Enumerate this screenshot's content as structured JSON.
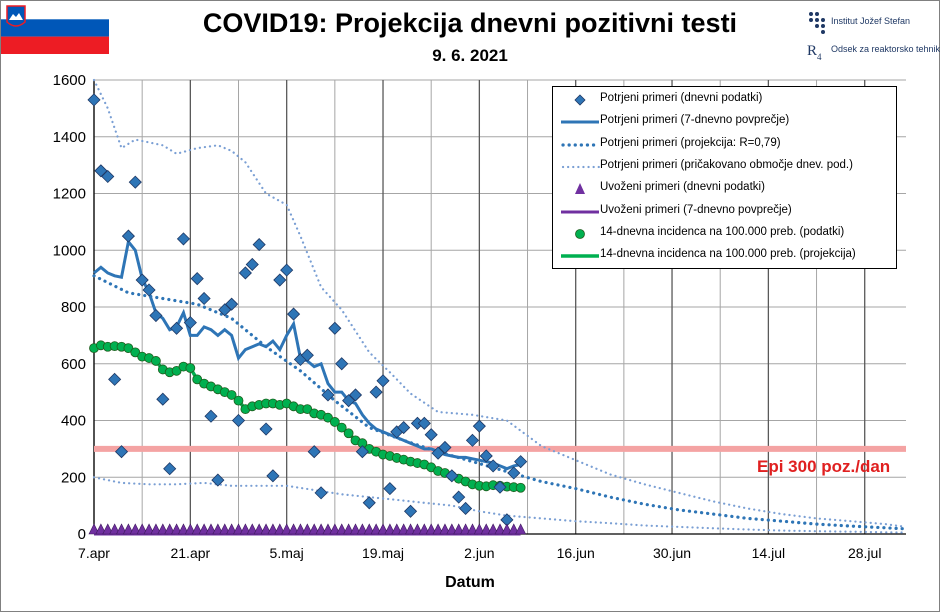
{
  "title": "COVID19: Projekcija dnevni pozitivni testi",
  "subtitle": "9. 6. 2021",
  "logo": {
    "institute": "Institut Jožef Stefan",
    "department": "Odsek za reaktorsko tehniko"
  },
  "epi_label": "Epi 300 poz./dan",
  "colors": {
    "daily": "#2e75b6",
    "daily_marker_fill": "#2e75b6",
    "projection": "#2e75b6",
    "range": "#7a9fd4",
    "imported": "#7030a0",
    "incidence": "#00b050",
    "epi_line": "#f4a3a3"
  },
  "chart_data": {
    "type": "line",
    "xlabel": "Datum",
    "ylabel": "",
    "x_tick_labels": [
      "7.apr",
      "21.apr",
      "5.maj",
      "19.maj",
      "2.jun",
      "16.jun",
      "30.jun",
      "14.jul",
      "28.jul"
    ],
    "x_day_range": [
      0,
      118
    ],
    "ylim": [
      0,
      1600
    ],
    "y_ticks": [
      0,
      200,
      400,
      600,
      800,
      1000,
      1200,
      1400,
      1600
    ],
    "grid": true,
    "legend_position": "top-right",
    "epi_threshold": 300,
    "series": [
      {
        "name": "Potrjeni primeri (dnevni podatki)",
        "style": "diamond",
        "x": [
          0,
          1,
          2,
          3,
          4,
          5,
          6,
          7,
          8,
          9,
          10,
          11,
          12,
          13,
          14,
          15,
          16,
          17,
          18,
          19,
          20,
          21,
          22,
          23,
          24,
          25,
          26,
          27,
          28,
          29,
          30,
          31,
          32,
          33,
          34,
          35,
          36,
          37,
          38,
          39,
          40,
          41,
          42,
          43,
          44,
          45,
          46,
          47,
          48,
          49,
          50,
          51,
          52,
          53,
          54,
          55,
          56,
          57,
          58,
          59,
          60,
          61,
          62
        ],
        "values": [
          1530,
          1280,
          1260,
          545,
          290,
          1050,
          1240,
          895,
          860,
          770,
          475,
          230,
          725,
          1040,
          745,
          900,
          830,
          415,
          190,
          790,
          810,
          400,
          920,
          950,
          1020,
          370,
          205,
          895,
          930,
          775,
          615,
          630,
          290,
          145,
          490,
          725,
          600,
          470,
          490,
          290,
          110,
          500,
          540,
          160,
          360,
          375,
          80,
          390,
          390,
          350,
          285,
          305,
          205,
          130,
          90,
          330,
          380,
          275,
          240,
          165,
          50,
          215,
          255
        ]
      },
      {
        "name": "Potrjeni primeri (7-dnevno povprečje)",
        "style": "line",
        "x": [
          0,
          1,
          2,
          3,
          4,
          5,
          6,
          7,
          8,
          9,
          10,
          11,
          12,
          13,
          14,
          15,
          16,
          17,
          18,
          19,
          20,
          21,
          22,
          23,
          24,
          25,
          26,
          27,
          28,
          29,
          30,
          31,
          32,
          33,
          34,
          35,
          36,
          37,
          38,
          39,
          40,
          41,
          42,
          43,
          44,
          45,
          46,
          47,
          48,
          49,
          50,
          51,
          52,
          53,
          54,
          55,
          56,
          57,
          58,
          59,
          60,
          61,
          62
        ],
        "values": [
          920,
          940,
          920,
          910,
          905,
          1030,
          1000,
          900,
          850,
          780,
          760,
          720,
          730,
          780,
          700,
          700,
          730,
          720,
          700,
          720,
          700,
          620,
          650,
          660,
          670,
          660,
          680,
          650,
          700,
          740,
          620,
          610,
          590,
          600,
          530,
          500,
          500,
          470,
          460,
          420,
          390,
          370,
          360,
          350,
          340,
          330,
          320,
          310,
          300,
          300,
          290,
          280,
          275,
          270,
          270,
          265,
          260,
          255,
          250,
          240,
          230,
          240,
          245
        ]
      },
      {
        "name": "Potrjeni primeri (projekcija: R=0,79)",
        "style": "dotted",
        "x": [
          0,
          5,
          10,
          15,
          20,
          25,
          30,
          35,
          40,
          45,
          50,
          55,
          60,
          65,
          70,
          75,
          80,
          85,
          90,
          95,
          100,
          105,
          110,
          115,
          118
        ],
        "values": [
          910,
          850,
          830,
          810,
          760,
          660,
          575,
          470,
          375,
          330,
          290,
          255,
          220,
          185,
          160,
          130,
          105,
          85,
          70,
          55,
          45,
          35,
          28,
          22,
          18
        ]
      },
      {
        "name": "Potrjeni primeri (pričakovano območje dnev. pod.)",
        "style": "dotted-thin",
        "x": [
          0,
          2,
          4,
          6,
          8,
          10,
          12,
          15,
          18,
          20,
          22,
          25,
          28,
          30,
          33,
          36,
          40,
          43,
          46,
          50,
          55,
          60,
          65,
          70,
          75,
          80,
          85,
          90,
          95,
          100,
          105,
          110,
          115,
          118
        ],
        "values": [
          1600,
          1500,
          1360,
          1390,
          1380,
          1370,
          1340,
          1360,
          1370,
          1350,
          1310,
          1200,
          1160,
          1050,
          870,
          790,
          640,
          570,
          495,
          430,
          420,
          400,
          310,
          260,
          210,
          175,
          145,
          115,
          90,
          70,
          55,
          45,
          35,
          25
        ]
      },
      {
        "name": "Potrjeni primeri (pričakovano območje dnev. pod.) spodaj",
        "style": "dotted-thin",
        "x": [
          0,
          4,
          8,
          12,
          16,
          20,
          24,
          28,
          32,
          36,
          40,
          44,
          48,
          52,
          56,
          60,
          65,
          70,
          75,
          80,
          85,
          90,
          95,
          100,
          105,
          110,
          115,
          118
        ],
        "values": [
          200,
          180,
          175,
          175,
          180,
          170,
          170,
          170,
          155,
          140,
          130,
          120,
          110,
          100,
          80,
          65,
          55,
          45,
          38,
          30,
          25,
          20,
          16,
          12,
          10,
          8,
          6,
          5
        ]
      },
      {
        "name": "Uvoženi primeri (dnevni podatki)",
        "style": "triangle",
        "x": [
          0,
          1,
          2,
          3,
          4,
          5,
          6,
          7,
          8,
          9,
          10,
          11,
          12,
          13,
          14,
          15,
          16,
          17,
          18,
          19,
          20,
          21,
          22,
          23,
          24,
          25,
          26,
          27,
          28,
          29,
          30,
          31,
          32,
          33,
          34,
          35,
          36,
          37,
          38,
          39,
          40,
          41,
          42,
          43,
          44,
          45,
          46,
          47,
          48,
          49,
          50,
          51,
          52,
          53,
          54,
          55,
          56,
          57,
          58,
          59,
          60,
          61,
          62
        ],
        "values": [
          0,
          0,
          0,
          0,
          0,
          0,
          0,
          0,
          0,
          0,
          0,
          0,
          0,
          0,
          0,
          0,
          0,
          0,
          0,
          0,
          0,
          0,
          0,
          0,
          0,
          0,
          0,
          0,
          0,
          0,
          0,
          0,
          0,
          0,
          0,
          0,
          0,
          0,
          0,
          0,
          0,
          0,
          0,
          0,
          0,
          0,
          0,
          0,
          0,
          0,
          0,
          0,
          0,
          0,
          0,
          0,
          0,
          0,
          0,
          0,
          0,
          0,
          0
        ]
      },
      {
        "name": "Uvoženi primeri (7-dnevno povprečje)",
        "style": "line-purple",
        "x": [
          0,
          62
        ],
        "values": [
          0,
          0
        ]
      },
      {
        "name": "14-dnevna incidenca na 100.000 preb. (podatki)",
        "style": "circle",
        "x": [
          0,
          1,
          2,
          3,
          4,
          5,
          6,
          7,
          8,
          9,
          10,
          11,
          12,
          13,
          14,
          15,
          16,
          17,
          18,
          19,
          20,
          21,
          22,
          23,
          24,
          25,
          26,
          27,
          28,
          29,
          30,
          31,
          32,
          33,
          34,
          35,
          36,
          37,
          38,
          39,
          40,
          41,
          42,
          43,
          44,
          45,
          46,
          47,
          48,
          49,
          50,
          51,
          52,
          53,
          54,
          55,
          56,
          57,
          58,
          59,
          60,
          61,
          62
        ],
        "values": [
          655,
          665,
          660,
          662,
          660,
          655,
          640,
          625,
          620,
          610,
          580,
          570,
          575,
          590,
          585,
          545,
          530,
          520,
          510,
          500,
          490,
          470,
          440,
          450,
          455,
          460,
          460,
          455,
          460,
          450,
          440,
          440,
          425,
          420,
          410,
          395,
          375,
          355,
          330,
          320,
          300,
          290,
          280,
          275,
          268,
          262,
          255,
          250,
          245,
          235,
          222,
          215,
          205,
          195,
          185,
          175,
          170,
          168,
          172,
          170,
          167,
          165,
          163
        ]
      },
      {
        "name": "14-dnevna incidenca na 100.000 preb. (projekcija)",
        "style": "line-green",
        "x": [
          0,
          5,
          10,
          15,
          20,
          25,
          30,
          35,
          40,
          45,
          50,
          55,
          60,
          65,
          70,
          75,
          80,
          85,
          90,
          95,
          100,
          105,
          110,
          115,
          118
        ],
        "values": [
          630,
          605,
          575,
          550,
          530,
          510,
          475,
          430,
          380,
          320,
          270,
          220,
          185,
          160,
          140,
          120,
          105,
          90,
          72,
          60,
          48,
          38,
          30,
          22,
          18
        ]
      }
    ]
  }
}
